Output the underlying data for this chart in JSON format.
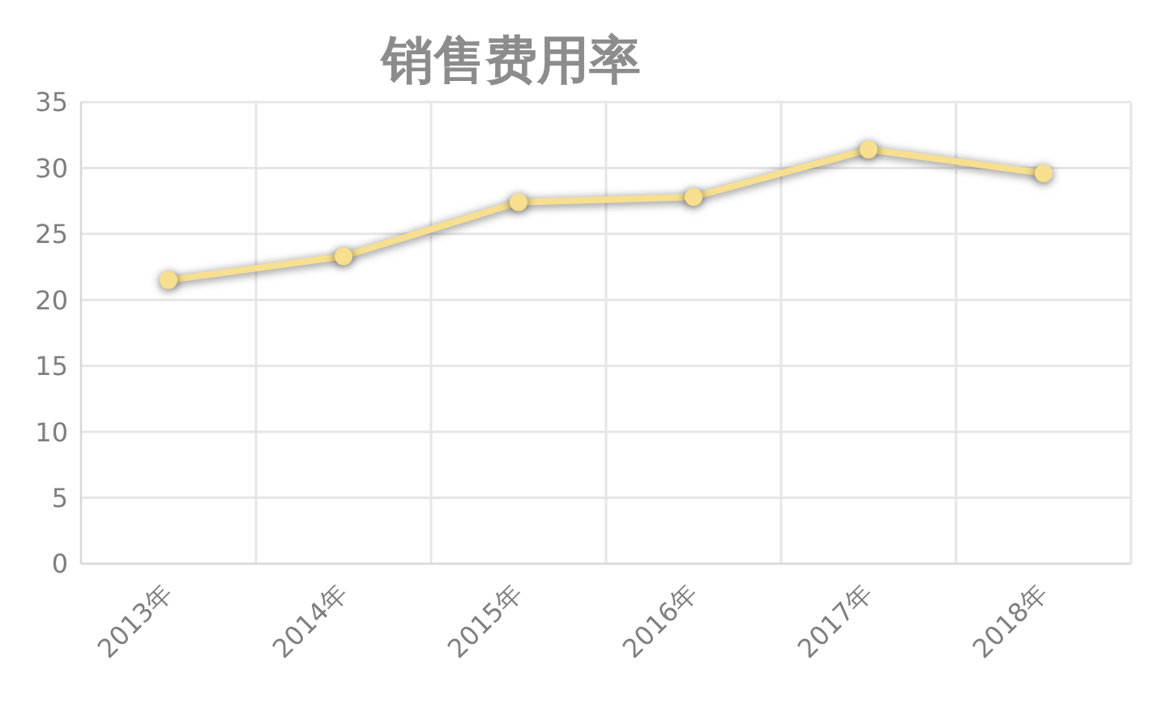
{
  "chart_data": {
    "type": "line",
    "title": "销售费用率",
    "categories": [
      "2013年",
      "2014年",
      "2015年",
      "2016年",
      "2017年",
      "2018年"
    ],
    "series": [
      {
        "color": "#f7df8f",
        "values": [
          21.5,
          23.3,
          27.4,
          27.8,
          31.4,
          29.6
        ]
      }
    ],
    "ylim": [
      0,
      35
    ],
    "yticks": [
      0,
      5,
      10,
      15,
      20,
      25,
      30,
      35
    ],
    "grid": true,
    "marker": "circle",
    "line_style": "solid"
  }
}
